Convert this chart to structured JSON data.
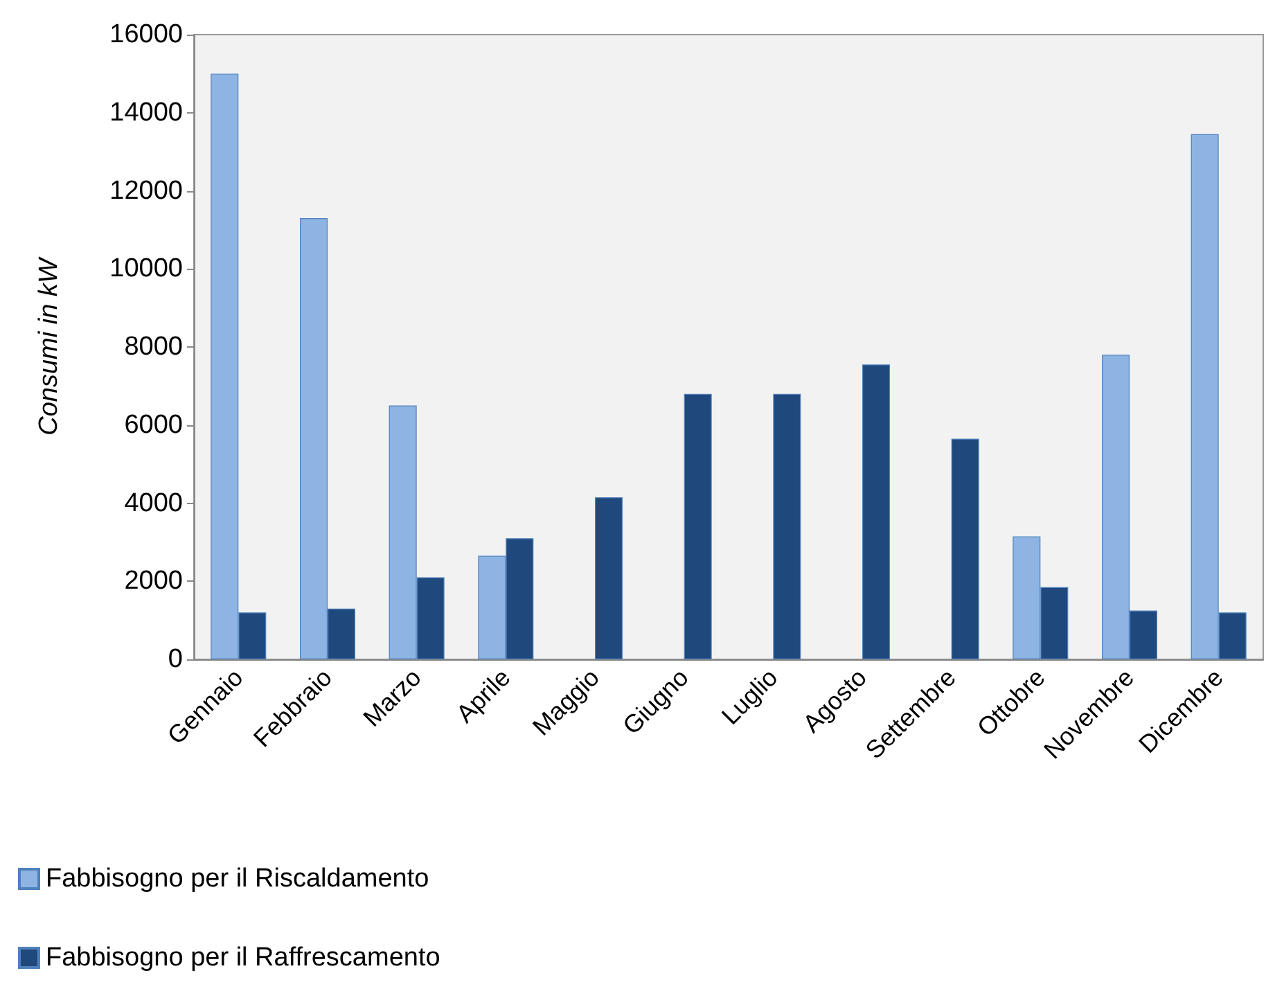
{
  "chart_data": {
    "type": "bar",
    "ylabel": "Consumi in kW",
    "categories": [
      "Gennaio",
      "Febbraio",
      "Marzo",
      "Aprile",
      "Maggio",
      "Giugno",
      "Luglio",
      "Agosto",
      "Settembre",
      "Ottobre",
      "Novembre",
      "Dicembre"
    ],
    "series": [
      {
        "name": "Fabbisogno per il Riscaldamento",
        "color": "#8db4e2",
        "values": [
          15000,
          11300,
          6500,
          2650,
          null,
          null,
          null,
          null,
          null,
          3150,
          7800,
          13450
        ]
      },
      {
        "name": "Fabbisogno per il Raffrescamento",
        "color": "#1f497d",
        "values": [
          1200,
          1300,
          2100,
          3100,
          4150,
          6800,
          6800,
          7550,
          5650,
          1850,
          1250,
          1200
        ]
      }
    ],
    "ylim": [
      0,
      16000
    ],
    "yticks": [
      0,
      2000,
      4000,
      6000,
      8000,
      10000,
      12000,
      14000,
      16000
    ],
    "grid": false,
    "legend": "bottom left"
  }
}
